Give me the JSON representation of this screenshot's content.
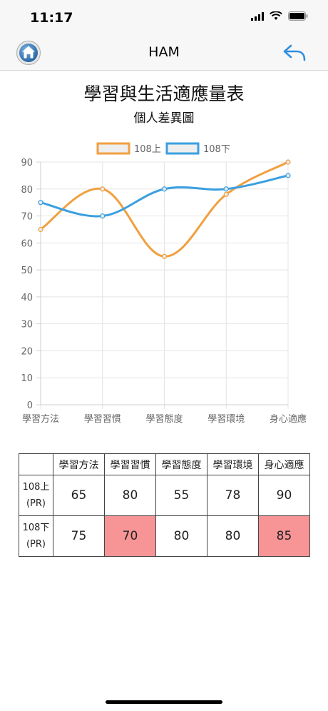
{
  "status": {
    "time": "11:17"
  },
  "nav": {
    "title": "HAM",
    "home_icon": "home-icon",
    "back_icon": "back-arrow-icon"
  },
  "title": "學習與生活適應量表",
  "subtitle": "個人差異圖",
  "chart_data": {
    "type": "line",
    "categories": [
      "學習方法",
      "學習習慣",
      "學習態度",
      "學習環境",
      "身心適應"
    ],
    "series": [
      {
        "name": "108上",
        "values": [
          65,
          80,
          55,
          78,
          90
        ],
        "color": "#f0a040"
      },
      {
        "name": "108下",
        "values": [
          75,
          70,
          80,
          80,
          85
        ],
        "color": "#3a9fe0"
      }
    ],
    "ylim": [
      0,
      90
    ],
    "yticks": [
      0,
      10,
      20,
      30,
      40,
      50,
      60,
      70,
      80,
      90
    ],
    "grid": true,
    "legend_position": "top"
  },
  "table": {
    "headers": [
      "",
      "學習方法",
      "學習習慣",
      "學習態度",
      "學習環境",
      "身心適應"
    ],
    "rows": [
      {
        "label_line1": "108上",
        "label_line2": "(PR)",
        "values": [
          "65",
          "80",
          "55",
          "78",
          "90"
        ],
        "highlight": [
          false,
          false,
          false,
          false,
          false
        ]
      },
      {
        "label_line1": "108下",
        "label_line2": "(PR)",
        "values": [
          "75",
          "70",
          "80",
          "80",
          "85"
        ],
        "highlight": [
          false,
          true,
          false,
          false,
          true
        ]
      }
    ],
    "highlight_color": "#f79496"
  }
}
